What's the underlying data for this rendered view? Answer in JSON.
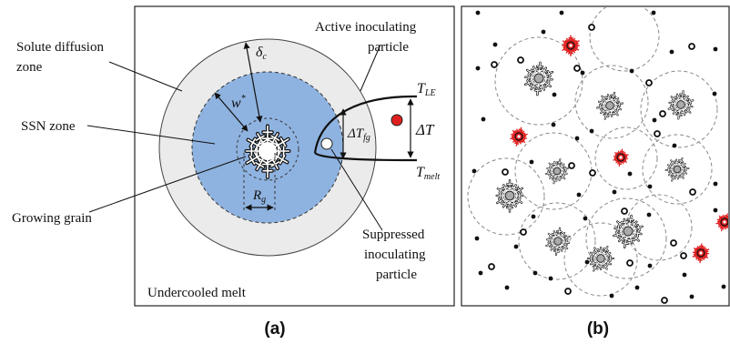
{
  "panel_a": {
    "panel_label": "(a)",
    "labels": {
      "solute_zone_1": "Solute diffusion",
      "solute_zone_2": "zone",
      "ssn_zone": "SSN zone",
      "growing_grain": "Growing grain",
      "undercooled_melt": "Undercooled melt",
      "active_1": "Active inoculating",
      "active_2": "particle",
      "suppressed_1": "Suppressed",
      "suppressed_2": "inoculating",
      "suppressed_3": "particle"
    },
    "symbols": {
      "delta_c": "δ",
      "delta_c_sub": "c",
      "w": "w",
      "w_sup": "*",
      "rg": "R",
      "rg_sub": "g",
      "t_le": "T",
      "t_le_sub": "LE",
      "t_melt": "T",
      "t_melt_sub": "melt",
      "dt_fg": "ΔT",
      "dt_fg_sub": "fg",
      "dt": "ΔT"
    },
    "colors": {
      "solute_zone": "#ebebeb",
      "ssn_zone": "#8fb3e0",
      "active_particle": "#e02020",
      "suppressed_particle": "#ffffff"
    }
  },
  "panel_b": {
    "panel_label": "(b)",
    "colors": {
      "active_grain": "#e02020",
      "grain_nucleus": "#aaaaaa"
    }
  }
}
